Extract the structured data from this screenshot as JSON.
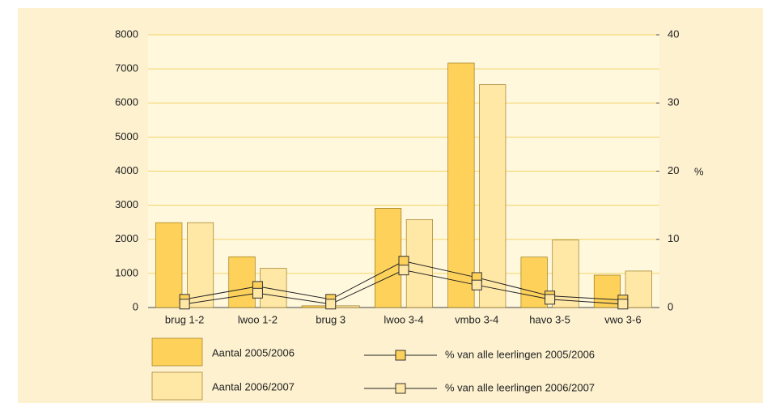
{
  "chart_data": {
    "type": "bar",
    "categories": [
      "brug 1-2",
      "lwoo 1-2",
      "brug 3",
      "lwoo 3-4",
      "vmbo 3-4",
      "havo 3-5",
      "vwo 3-6"
    ],
    "series": [
      {
        "name": "Aantal 2005/2006",
        "color": "#fdd15a",
        "values": [
          2490,
          1490,
          50,
          2910,
          7170,
          1480,
          950
        ]
      },
      {
        "name": "Aantal 2006/2007",
        "color": "#ffe7a6",
        "values": [
          2490,
          1150,
          50,
          2580,
          6540,
          1980,
          1070
        ]
      },
      {
        "name": "% van alle leerlingen 2005/2006",
        "type": "line",
        "axis": "y2",
        "color": "#fdd15a",
        "values": [
          1.2,
          3.1,
          1.2,
          6.8,
          4.4,
          1.7,
          1.1
        ]
      },
      {
        "name": "% van alle leerlingen 2006/2007",
        "type": "line",
        "axis": "y2",
        "color": "#ffe7a6",
        "values": [
          0.5,
          2.1,
          0.5,
          5.5,
          3.3,
          1.2,
          0.5
        ]
      }
    ],
    "ylim": [
      0,
      8000
    ],
    "yticks": [
      0,
      1000,
      2000,
      3000,
      4000,
      5000,
      6000,
      7000,
      8000
    ],
    "y2lim": [
      0,
      40
    ],
    "y2ticks": [
      0,
      10,
      20,
      30,
      40
    ],
    "y2label": "%",
    "grid": true
  }
}
